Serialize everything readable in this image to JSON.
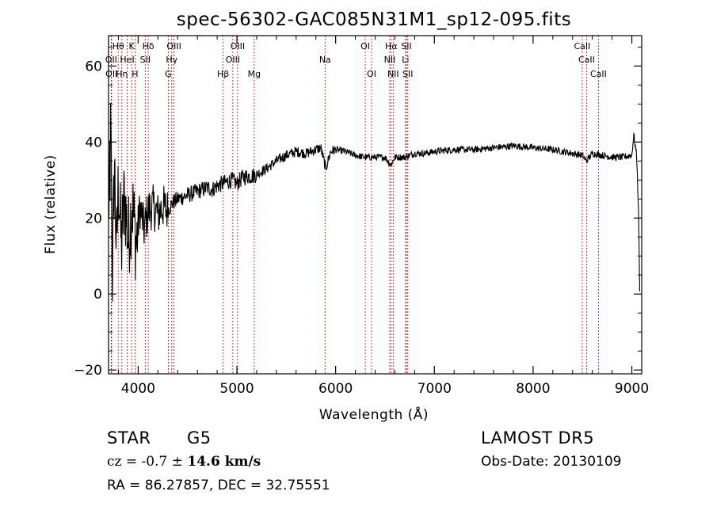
{
  "footer": {
    "object_class": "STAR",
    "subclass": "G5",
    "survey": "LAMOST DR5",
    "cz_label": "cz = ",
    "cz_value": "-0.7",
    "cz_pm": "±",
    "cz_error": "14.6 km/s",
    "obs_date": "Obs-Date: 20130109",
    "coords": "RA =  86.27857, DEC =  32.75551"
  },
  "colors": {
    "axes": "#000000",
    "spectrum": "#000000",
    "lines": "#cc0000"
  },
  "chart_data": {
    "type": "line",
    "title": "spec-56302-GAC085N31M1_sp12-095.fits",
    "xlabel": "Wavelength (Å)",
    "ylabel": "Flux (relative)",
    "xlim": [
      3700,
      9100
    ],
    "ylim": [
      -21,
      68
    ],
    "xticks": [
      4000,
      5000,
      6000,
      7000,
      8000,
      9000
    ],
    "yticks": [
      -20,
      0,
      20,
      40,
      60
    ],
    "grid": false,
    "series": [
      {
        "values_description_free": true,
        "x": [
          3700,
          3720,
          3740,
          3760,
          3780,
          3800,
          3830,
          3860,
          3900,
          3940,
          3980,
          4020,
          4060,
          4100,
          4150,
          4200,
          4250,
          4300,
          4350,
          4400,
          4450,
          4500,
          4550,
          4600,
          4650,
          4700,
          4750,
          4800,
          4850,
          4900,
          4950,
          5000,
          5050,
          5100,
          5150,
          5200,
          5300,
          5400,
          5500,
          5600,
          5700,
          5800,
          5850,
          5900,
          5950,
          6000,
          6100,
          6200,
          6300,
          6400,
          6500,
          6560,
          6600,
          6700,
          6800,
          6900,
          7000,
          7200,
          7400,
          7600,
          7800,
          8000,
          8200,
          8400,
          8500,
          8540,
          8600,
          8700,
          8800,
          8900,
          9000,
          9020,
          9050,
          9070,
          9080
        ],
        "y": [
          20,
          42,
          5,
          35,
          10,
          30,
          12,
          26,
          14,
          24,
          13,
          23,
          17,
          22,
          23,
          21,
          23,
          22,
          24,
          25,
          25.5,
          26,
          26.5,
          27,
          27.5,
          28,
          27.5,
          28.5,
          29,
          29.5,
          30,
          29,
          30.5,
          31,
          31,
          31.5,
          33,
          35,
          36.5,
          37.5,
          37,
          38,
          38.5,
          33,
          37.5,
          38,
          37.5,
          36.5,
          36,
          36,
          36,
          34,
          36,
          36,
          37,
          37,
          37.5,
          38,
          38,
          38.5,
          39,
          38.5,
          38,
          37,
          36.5,
          35,
          37,
          36.5,
          36,
          36,
          36.5,
          42,
          36,
          20,
          0
        ]
      }
    ],
    "line_labels": [
      {
        "name": "Hθ",
        "x": 3798,
        "row": 1
      },
      {
        "name": "K",
        "x": 3934,
        "row": 1
      },
      {
        "name": "Hδ",
        "x": 4102,
        "row": 1
      },
      {
        "name": "OIII",
        "x": 4363,
        "row": 1
      },
      {
        "name": "OIII",
        "x": 5007,
        "row": 1
      },
      {
        "name": "OI",
        "x": 6300,
        "row": 1
      },
      {
        "name": "Hα",
        "x": 6563,
        "row": 1
      },
      {
        "name": "SII",
        "x": 6717,
        "row": 1
      },
      {
        "name": "CaII",
        "x": 8498,
        "row": 1
      },
      {
        "name": "OII",
        "x": 3727,
        "row": 2
      },
      {
        "name": "HeI",
        "x": 3889,
        "row": 2
      },
      {
        "name": "SII",
        "x": 4072,
        "row": 2
      },
      {
        "name": "Hγ",
        "x": 4340,
        "row": 2
      },
      {
        "name": "OIII",
        "x": 4959,
        "row": 2
      },
      {
        "name": "Na",
        "x": 5893,
        "row": 2
      },
      {
        "name": "NII",
        "x": 6548,
        "row": 2
      },
      {
        "name": "Li",
        "x": 6708,
        "row": 2
      },
      {
        "name": "CaII",
        "x": 8542,
        "row": 2
      },
      {
        "name": "OII",
        "x": 3730,
        "row": 3
      },
      {
        "name": "Hη",
        "x": 3835,
        "row": 3
      },
      {
        "name": "H",
        "x": 3968,
        "row": 3
      },
      {
        "name": "G",
        "x": 4305,
        "row": 3
      },
      {
        "name": "Hβ",
        "x": 4861,
        "row": 3
      },
      {
        "name": "Mg",
        "x": 5175,
        "row": 3
      },
      {
        "name": "OI",
        "x": 6364,
        "row": 3
      },
      {
        "name": "NII",
        "x": 6583,
        "row": 3
      },
      {
        "name": "SII",
        "x": 6731,
        "row": 3
      },
      {
        "name": "CaII",
        "x": 8662,
        "row": 3
      }
    ]
  }
}
